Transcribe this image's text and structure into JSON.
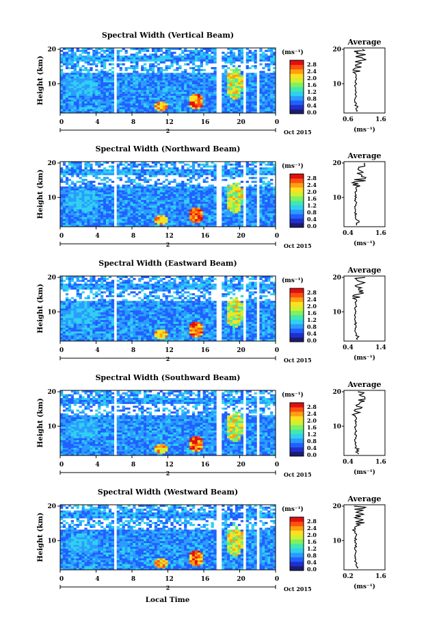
{
  "chart_data": [
    {
      "type": "heatmap",
      "title": "Spectral Width (Vertical Beam)",
      "ylabel": "Height (km)",
      "x_ticks": [
        "0",
        "4",
        "8",
        "12",
        "16",
        "20",
        "0"
      ],
      "y_ticks": [
        "20",
        "10"
      ],
      "date_marker": "2",
      "date_label": "Oct 2015",
      "colorbar": {
        "unit": "(ms⁻¹)",
        "ticks": [
          "2.8",
          "2.4",
          "2.0",
          "1.6",
          "1.2",
          "0.8",
          "0.4",
          "0.0"
        ],
        "range": [
          0,
          3.0
        ]
      },
      "avg": {
        "title": "Average",
        "xlabel": "(ms⁻¹)",
        "x_ticks": [
          "0.6",
          "1.6"
        ],
        "y_ticks": [
          "20",
          "10"
        ],
        "xlim": [
          0.6,
          1.6
        ]
      }
    },
    {
      "type": "heatmap",
      "title": "Spectral Width (Northward Beam)",
      "ylabel": "Height (km)",
      "x_ticks": [
        "0",
        "4",
        "8",
        "12",
        "16",
        "20",
        "0"
      ],
      "y_ticks": [
        "20",
        "10"
      ],
      "date_marker": "2",
      "date_label": "Oct 2015",
      "colorbar": {
        "unit": "(ms⁻¹)",
        "ticks": [
          "2.8",
          "2.4",
          "2.0",
          "1.6",
          "1.2",
          "0.8",
          "0.4",
          "0.0"
        ],
        "range": [
          0,
          3.0
        ]
      },
      "avg": {
        "title": "Average",
        "xlabel": "(ms⁻¹)",
        "x_ticks": [
          "0.4",
          "1.6"
        ],
        "y_ticks": [
          "20",
          "10"
        ],
        "xlim": [
          0.4,
          1.6
        ]
      }
    },
    {
      "type": "heatmap",
      "title": "Spectral Width (Eastward Beam)",
      "ylabel": "Height (km)",
      "x_ticks": [
        "0",
        "4",
        "8",
        "12",
        "16",
        "20",
        "0"
      ],
      "y_ticks": [
        "20",
        "10"
      ],
      "date_marker": "2",
      "date_label": "Oct 2015",
      "colorbar": {
        "unit": "(ms⁻¹)",
        "ticks": [
          "2.8",
          "2.4",
          "2.0",
          "1.6",
          "1.2",
          "0.8",
          "0.4",
          "0.0"
        ],
        "range": [
          0,
          3.0
        ]
      },
      "avg": {
        "title": "Average",
        "xlabel": "(ms⁻¹)",
        "x_ticks": [
          "0.4",
          "1.4"
        ],
        "y_ticks": [
          "20",
          "10"
        ],
        "xlim": [
          0.4,
          1.4
        ]
      }
    },
    {
      "type": "heatmap",
      "title": "Spectral Width (Southward Beam)",
      "ylabel": "Height (km)",
      "x_ticks": [
        "0",
        "4",
        "8",
        "12",
        "16",
        "20",
        "0"
      ],
      "y_ticks": [
        "20",
        "10"
      ],
      "date_marker": "2",
      "date_label": "Oct 2015",
      "colorbar": {
        "unit": "(ms⁻¹)",
        "ticks": [
          "2.8",
          "2.4",
          "2.0",
          "1.6",
          "1.2",
          "0.8",
          "0.4",
          "0.0"
        ],
        "range": [
          0,
          3.0
        ]
      },
      "avg": {
        "title": "Average",
        "xlabel": "(ms⁻¹)",
        "x_ticks": [
          "0.4",
          "1.6"
        ],
        "y_ticks": [
          "20",
          "10"
        ],
        "xlim": [
          0.4,
          1.6
        ]
      }
    },
    {
      "type": "heatmap",
      "title": "Spectral Width (Westward Beam)",
      "ylabel": "Height (km)",
      "x_ticks": [
        "0",
        "4",
        "8",
        "12",
        "16",
        "20",
        "0"
      ],
      "y_ticks": [
        "20",
        "10"
      ],
      "date_marker": "2",
      "date_label": "Oct 2015",
      "colorbar": {
        "unit": "(ms⁻¹)",
        "ticks": [
          "2.8",
          "2.4",
          "2.0",
          "1.6",
          "1.2",
          "0.8",
          "0.4",
          "0.0"
        ],
        "range": [
          0,
          3.0
        ]
      },
      "avg": {
        "title": "Average",
        "xlabel": "(ms⁻¹)",
        "x_ticks": [
          "0.2",
          "1.6"
        ],
        "y_ticks": [
          "20",
          "10"
        ],
        "xlim": [
          0.2,
          1.6
        ]
      }
    }
  ],
  "xlabel": "Local Time",
  "colormap": [
    "#1c1c70",
    "#1f2fd0",
    "#2060ff",
    "#2a9cff",
    "#30d0f0",
    "#40e8b0",
    "#80f060",
    "#d0f030",
    "#ffe020",
    "#ffa010",
    "#ff5010",
    "#e01010",
    "#ffffff"
  ]
}
